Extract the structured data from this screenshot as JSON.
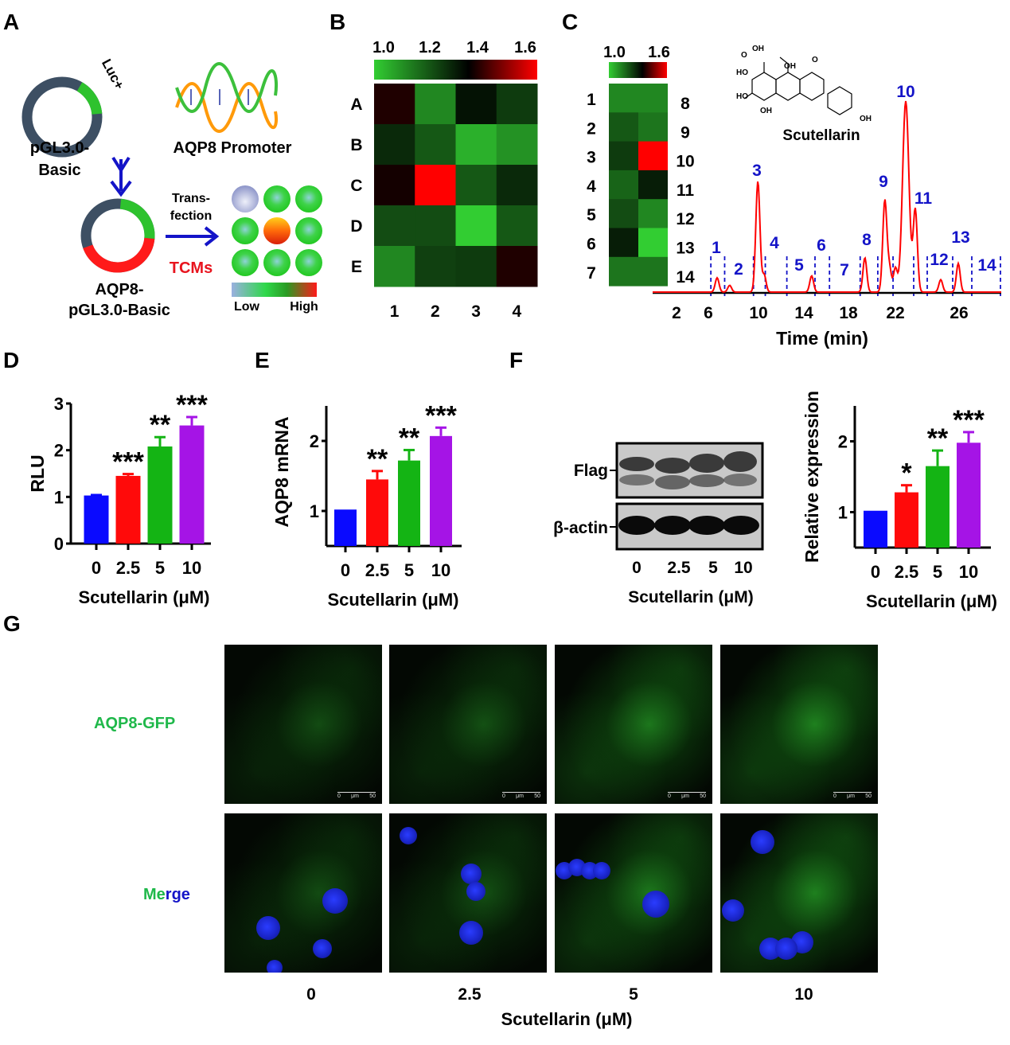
{
  "panels": {
    "A": "A",
    "B": "B",
    "C": "C",
    "D": "D",
    "E": "E",
    "F": "F",
    "G": "G"
  },
  "panel_a": {
    "plasmid_label_1": "pGL3.0-",
    "plasmid_label_2": "Basic",
    "luc_label": "Luc+",
    "promoter_label": "AQP8 Promoter",
    "construct_label_1": "AQP8-",
    "construct_label_2": "pGL3.0-Basic",
    "transfection_1": "Trans-",
    "transfection_2": "fection",
    "tcms_label": "TCMs",
    "legend_low": "Low",
    "legend_high": "High",
    "colors": {
      "backbone": "#3d4f63",
      "luc": "#2ec22e",
      "promoter": "#ff1a1a",
      "arrow": "#1414c8",
      "tcms": "#e8141e"
    },
    "well_levels": [
      "low",
      "mid",
      "mid",
      "mid",
      "high",
      "mid",
      "mid",
      "mid",
      "mid"
    ]
  },
  "panel_f_blot": {
    "band_labels": [
      "Flag",
      "β-actin"
    ],
    "lane_labels": [
      "0",
      "2.5",
      "5",
      "10"
    ],
    "xlabel": "Scutellarin (μM)"
  },
  "panel_g": {
    "row_labels": {
      "gfp": "AQP8-GFP",
      "merge_me": "Me",
      "merge_rge": "rge"
    },
    "column_labels": [
      "0",
      "2.5",
      "5",
      "10"
    ],
    "xlabel": "Scutellarin (μM)",
    "scale_bar": {
      "start": "0",
      "unit": "μm",
      "end": "50"
    },
    "gfp_intensity": [
      0.25,
      0.3,
      0.7,
      0.8
    ]
  },
  "chart_data": [
    {
      "panel": "B",
      "type": "heatmap",
      "rows": [
        "A",
        "B",
        "C",
        "D",
        "E"
      ],
      "columns": [
        "1",
        "2",
        "3",
        "4"
      ],
      "values": [
        [
          1.38,
          1.12,
          1.32,
          1.25
        ],
        [
          1.28,
          1.2,
          1.05,
          1.1
        ],
        [
          1.37,
          1.6,
          1.2,
          1.28
        ],
        [
          1.22,
          1.22,
          1.0,
          1.2
        ],
        [
          1.12,
          1.24,
          1.25,
          1.38
        ]
      ],
      "colorbar_ticks": [
        "1.0",
        "1.2",
        "1.4",
        "1.6"
      ],
      "range": [
        1.0,
        1.6
      ],
      "colors": [
        "#32cd32",
        "#000000",
        "#ff0000"
      ]
    },
    {
      "panel": "C",
      "type": "heatmap",
      "row_labels_left": [
        "1",
        "2",
        "3",
        "4",
        "5",
        "6",
        "7"
      ],
      "row_labels_right": [
        "8",
        "9",
        "10",
        "11",
        "12",
        "13",
        "14"
      ],
      "values": [
        [
          1.12,
          1.12
        ],
        [
          1.2,
          1.15
        ],
        [
          1.25,
          1.6
        ],
        [
          1.18,
          1.3
        ],
        [
          1.22,
          1.12
        ],
        [
          1.3,
          1.0
        ],
        [
          1.15,
          1.15
        ]
      ],
      "colorbar_ticks": [
        "1.0",
        "1.6"
      ],
      "range": [
        1.0,
        1.6
      ]
    },
    {
      "panel": "C",
      "type": "line",
      "xlabel": "Time (min)",
      "xticks": [
        "2",
        "6",
        "10",
        "14",
        "18",
        "22",
        "26"
      ],
      "structure_label": "Scutellarin",
      "peaks": [
        {
          "t": 6.7,
          "rel": 0.075
        },
        {
          "t": 7.7,
          "rel": 0.035
        },
        {
          "t": 9.95,
          "rel": 0.58
        },
        {
          "t": 10.5,
          "rel": 0.09
        },
        {
          "t": 14.7,
          "rel": 0.085
        },
        {
          "t": 19.4,
          "rel": 0.18
        },
        {
          "t": 21.1,
          "rel": 0.48
        },
        {
          "t": 21.5,
          "rel": 0.12
        },
        {
          "t": 22.0,
          "rel": 0.125
        },
        {
          "t": 22.65,
          "rel": 1.0
        },
        {
          "t": 23.25,
          "rel": 0.43
        },
        {
          "t": 24.85,
          "rel": 0.065
        },
        {
          "t": 25.95,
          "rel": 0.15
        }
      ],
      "region_boundaries": [
        6.2,
        7.3,
        9.6,
        10.6,
        12.5,
        15.0,
        16.3,
        19.0,
        20.5,
        21.8,
        23.15,
        24.0,
        25.6,
        26.8,
        28.6
      ],
      "region_labels": [
        "1",
        "2",
        "3",
        "4",
        "5",
        "6",
        "7",
        "8",
        "9",
        "10",
        "11",
        "12",
        "13",
        "14"
      ],
      "colors": {
        "trace": "#ff0000",
        "regions": "#1414c8"
      }
    },
    {
      "panel": "D",
      "type": "bar",
      "categories": [
        "0",
        "2.5",
        "5",
        "10"
      ],
      "values": [
        1.03,
        1.45,
        2.08,
        2.53
      ],
      "errors": [
        0.01,
        0.04,
        0.2,
        0.18
      ],
      "significance": [
        "",
        "***",
        "**",
        "***"
      ],
      "ylabel": "RLU",
      "xlabel": "Scutellarin (μM)",
      "ylim": [
        0,
        3
      ],
      "yticks": [
        "0",
        "1",
        "2",
        "3"
      ],
      "colors": [
        "#0a0aff",
        "#ff0a0a",
        "#14b414",
        "#a514e6"
      ]
    },
    {
      "panel": "E",
      "type": "bar",
      "categories": [
        "0",
        "2.5",
        "5",
        "10"
      ],
      "values": [
        1.02,
        1.45,
        1.72,
        2.07
      ],
      "errors": [
        0.0,
        0.12,
        0.15,
        0.12
      ],
      "significance": [
        "",
        "**",
        "**",
        "***"
      ],
      "ylabel": "AQP8 mRNA",
      "xlabel": "Scutellarin (μM)",
      "ylim": [
        0.5,
        2.5
      ],
      "yticks": [
        "1",
        "2"
      ],
      "colors": [
        "#0a0aff",
        "#ff0a0a",
        "#14b414",
        "#a514e6"
      ]
    },
    {
      "panel": "F",
      "type": "bar",
      "categories": [
        "0",
        "2.5",
        "5",
        "10"
      ],
      "values": [
        1.02,
        1.28,
        1.65,
        1.98
      ],
      "errors": [
        0.0,
        0.1,
        0.22,
        0.15
      ],
      "significance": [
        "",
        "*",
        "**",
        "***"
      ],
      "ylabel": "Relative expression",
      "xlabel": "Scutellarin (μM)",
      "ylim": [
        0.5,
        2.5
      ],
      "yticks": [
        "1",
        "2"
      ],
      "colors": [
        "#0a0aff",
        "#ff0a0a",
        "#14b414",
        "#a514e6"
      ]
    }
  ]
}
